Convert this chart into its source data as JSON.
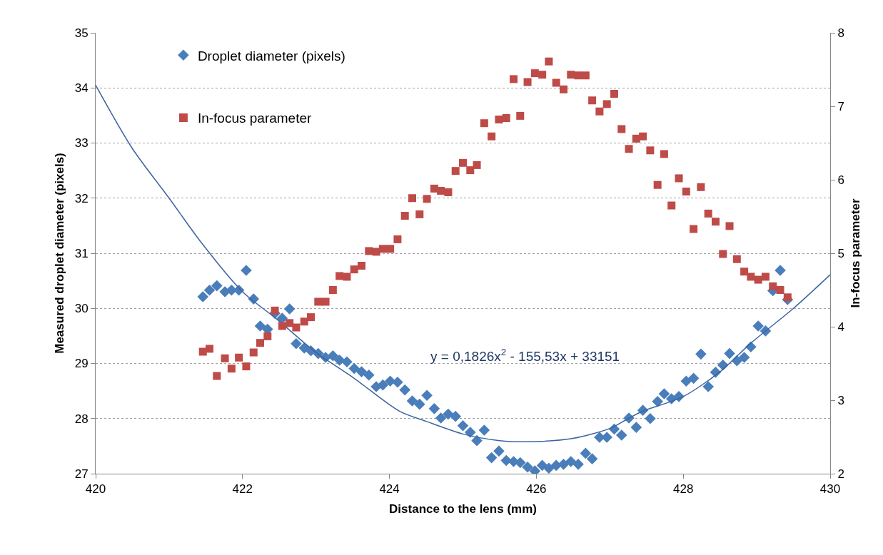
{
  "chart_data": {
    "type": "scatter",
    "xlabel": "Distance to the lens (mm)",
    "ylabel": "Measured droplet diameter (pixels)",
    "y2label": "In-focus parameter",
    "x": [
      421.46,
      421.55,
      421.65,
      421.76,
      421.85,
      421.95,
      422.05,
      422.15,
      422.24,
      422.34,
      422.44,
      422.54,
      422.64,
      422.73,
      422.84,
      422.93,
      423.03,
      423.13,
      423.23,
      423.32,
      423.42,
      423.52,
      423.62,
      423.72,
      423.82,
      423.91,
      424.01,
      424.11,
      424.21,
      424.31,
      424.41,
      424.51,
      424.61,
      424.7,
      424.8,
      424.9,
      425.0,
      425.1,
      425.19,
      425.29,
      425.39,
      425.49,
      425.59,
      425.69,
      425.78,
      425.88,
      425.98,
      426.08,
      426.17,
      426.27,
      426.37,
      426.47,
      426.57,
      426.67,
      426.76,
      426.86,
      426.96,
      427.06,
      427.16,
      427.26,
      427.36,
      427.45,
      427.55,
      427.65,
      427.74,
      427.84,
      427.94,
      428.04,
      428.14,
      428.24,
      428.34,
      428.44,
      428.54,
      428.63,
      428.73,
      428.83,
      428.92,
      429.02,
      429.12,
      429.22,
      429.32,
      429.42
    ],
    "series": [
      {
        "name": "Droplet diameter (pixels)",
        "color": "#4a7ebb",
        "marker": "diamond",
        "values": [
          30.21,
          30.33,
          30.41,
          30.3,
          30.33,
          30.33,
          30.69,
          30.17,
          29.68,
          29.62,
          29.91,
          29.82,
          29.99,
          29.36,
          29.28,
          29.23,
          29.18,
          29.11,
          29.14,
          29.06,
          29.03,
          28.91,
          28.85,
          28.79,
          28.58,
          28.61,
          28.68,
          28.66,
          28.52,
          28.32,
          28.26,
          28.42,
          28.18,
          28.01,
          28.08,
          28.04,
          27.87,
          27.75,
          27.6,
          27.79,
          27.29,
          27.41,
          27.24,
          27.22,
          27.2,
          27.12,
          27.05,
          27.15,
          27.1,
          27.15,
          27.17,
          27.22,
          27.17,
          27.37,
          27.27,
          27.66,
          27.66,
          27.81,
          27.7,
          28.01,
          27.84,
          28.15,
          28.0,
          28.31,
          28.45,
          28.36,
          28.4,
          28.68,
          28.73,
          29.17,
          28.58,
          28.84,
          28.97,
          29.18,
          29.05,
          29.11,
          29.3,
          29.68,
          29.59,
          30.32,
          30.69,
          30.16
        ]
      },
      {
        "name": "In-focus parameter",
        "color": "#be4b48",
        "marker": "square",
        "axis": "y2",
        "values": [
          3.66,
          3.7,
          3.33,
          3.57,
          3.43,
          3.58,
          3.46,
          3.65,
          3.78,
          3.87,
          4.22,
          4.01,
          4.05,
          3.99,
          4.07,
          4.13,
          4.34,
          4.34,
          4.5,
          4.69,
          4.68,
          4.78,
          4.83,
          5.03,
          5.02,
          5.06,
          5.06,
          5.19,
          5.51,
          5.75,
          5.53,
          5.74,
          5.88,
          5.85,
          5.83,
          6.12,
          6.23,
          6.13,
          6.2,
          6.77,
          6.59,
          6.82,
          6.84,
          7.37,
          6.87,
          7.33,
          7.45,
          7.43,
          7.61,
          7.32,
          7.23,
          7.43,
          7.42,
          7.42,
          7.08,
          6.93,
          7.03,
          7.17,
          6.69,
          6.42,
          6.56,
          6.59,
          6.4,
          5.93,
          6.35,
          5.65,
          6.02,
          5.84,
          5.33,
          5.9,
          5.54,
          5.43,
          4.99,
          5.37,
          4.92,
          4.75,
          4.68,
          4.64,
          4.68,
          4.55,
          4.5,
          4.4
        ]
      },
      {
        "type": "line",
        "color": "#3b64a0",
        "marker": "none",
        "line_style": "solid",
        "x": [
          420,
          420.5,
          421,
          421.44,
          422,
          422.46,
          423,
          423.5,
          424.14,
          424.5,
          425,
          425.5,
          425.89,
          426.5,
          427,
          427.25,
          427.44,
          428,
          428.5,
          428.93,
          429.5,
          430
        ],
        "values": [
          34.05,
          32.9,
          32.0,
          31.19,
          30.3,
          29.81,
          29.2,
          28.75,
          28.13,
          27.95,
          27.72,
          27.6,
          27.58,
          27.64,
          27.82,
          28.0,
          28.13,
          28.4,
          28.85,
          29.38,
          30.0,
          30.61
        ]
      }
    ],
    "annotations": [
      "y = 0,1826x$^{2}$ - 155,53x + 33151"
    ],
    "xlim": [
      420,
      430
    ],
    "xticks": [
      420,
      422,
      424,
      426,
      428,
      430
    ],
    "ylim": [
      27,
      35
    ],
    "yticks": [
      27,
      28,
      29,
      30,
      31,
      32,
      33,
      34,
      35
    ],
    "y2lim": [
      2,
      8
    ],
    "y2ticks": [
      2,
      3,
      4,
      5,
      6,
      7,
      8
    ],
    "grid": "y",
    "legend": "top left"
  }
}
